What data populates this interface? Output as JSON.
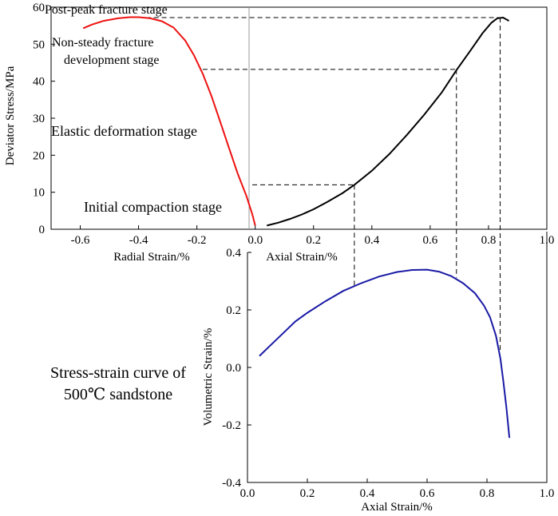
{
  "chart_data": [
    {
      "type": "line",
      "panel": "stress-strain",
      "ylabel": "Deviator Stress/MPa",
      "xlabel_left": "Radial Strain/%",
      "xlabel_right": "Axial Strain/%",
      "xlim": [
        -0.7,
        1.0
      ],
      "ylim": [
        0,
        60
      ],
      "x_ticks": [
        "-0.6",
        "-0.4",
        "-0.2",
        "0.0",
        "0.2",
        "0.4",
        "0.6",
        "0.8",
        "1.0"
      ],
      "y_ticks": [
        "0",
        "10",
        "20",
        "30",
        "40",
        "50",
        "60"
      ],
      "series": [
        {
          "role": "radial",
          "color": "#ee1111",
          "x": [
            0.0,
            -0.01,
            -0.03,
            -0.06,
            -0.09,
            -0.12,
            -0.15,
            -0.18,
            -0.21,
            -0.24,
            -0.28,
            -0.32,
            -0.36,
            -0.4,
            -0.43,
            -0.47,
            -0.52,
            -0.56,
            -0.59
          ],
          "y": [
            1,
            4,
            9,
            15,
            22,
            29,
            36,
            42,
            47,
            51,
            54.5,
            56.2,
            57.0,
            57.3,
            57.3,
            57.0,
            56.3,
            55.3,
            54.3
          ]
        },
        {
          "role": "axial",
          "color": "#000000",
          "x": [
            0.04,
            0.08,
            0.12,
            0.16,
            0.2,
            0.25,
            0.3,
            0.34,
            0.4,
            0.46,
            0.52,
            0.58,
            0.64,
            0.69,
            0.74,
            0.78,
            0.81,
            0.83,
            0.85,
            0.87
          ],
          "y": [
            1.0,
            1.8,
            2.8,
            4.0,
            5.4,
            7.5,
            9.8,
            12.0,
            15.8,
            20.3,
            25.5,
            31.0,
            37.0,
            43.0,
            48.5,
            53.0,
            55.8,
            57.0,
            57.2,
            56.3
          ]
        }
      ],
      "stages": [
        "Post-peak fracture stage",
        "Non-steady fracture",
        "development stage",
        "Elastic deformation stage",
        "Initial compaction stage"
      ],
      "guides": [
        {
          "y": 12,
          "x_from": -0.01,
          "x_to": 0.34
        },
        {
          "y": 43.2,
          "x_from": -0.18,
          "x_to": 0.69
        },
        {
          "y": 57.2,
          "x_from": -0.43,
          "x_to": 0.84
        }
      ]
    },
    {
      "type": "line",
      "panel": "volumetric",
      "ylabel": "Volumetric Strain/%",
      "xlabel": "Axial Strain/%",
      "xlim": [
        0.0,
        1.0
      ],
      "ylim": [
        -0.4,
        0.4
      ],
      "x_ticks": [
        "0.0",
        "0.2",
        "0.4",
        "0.6",
        "0.8",
        "1.0"
      ],
      "y_ticks": [
        "0.4",
        "0.2",
        "0.0",
        "-0.2",
        "-0.4"
      ],
      "series": [
        {
          "role": "volumetric",
          "color": "#1a1aa6",
          "x": [
            0.04,
            0.08,
            0.12,
            0.16,
            0.2,
            0.26,
            0.32,
            0.38,
            0.44,
            0.5,
            0.55,
            0.6,
            0.64,
            0.68,
            0.72,
            0.76,
            0.79,
            0.81,
            0.83,
            0.845,
            0.855,
            0.865,
            0.875
          ],
          "y": [
            0.04,
            0.08,
            0.12,
            0.16,
            0.19,
            0.23,
            0.266,
            0.293,
            0.316,
            0.332,
            0.339,
            0.34,
            0.333,
            0.318,
            0.293,
            0.258,
            0.215,
            0.175,
            0.11,
            0.03,
            -0.05,
            -0.14,
            -0.245
          ]
        }
      ],
      "guide_x": [
        0.34,
        0.69,
        0.84
      ]
    }
  ],
  "caption": {
    "line1": "Stress-strain curve of",
    "line2": "500℃ sandstone"
  }
}
